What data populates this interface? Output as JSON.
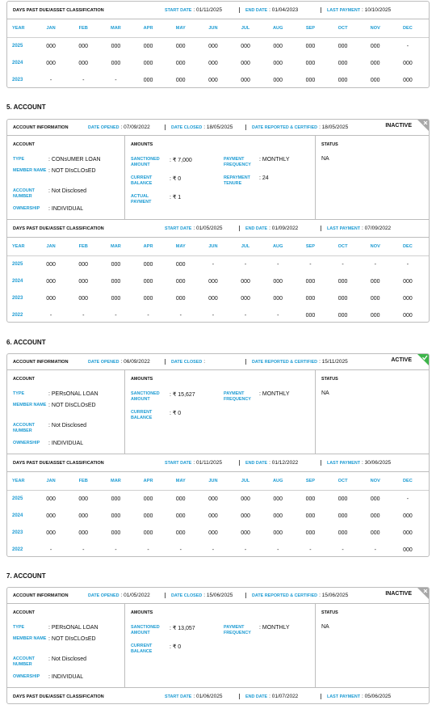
{
  "partial_dpd": {
    "title": "DAYS PAST DUE/ASSET CLASSIFICATION",
    "start_label": "START DATE",
    "start": ": 01/11/2025",
    "end_label": "END DATE",
    "end": ": 01/04/2023",
    "last_label": "LAST PAYMENT",
    "last": ": 10/10/2025",
    "header": [
      "YEAR",
      "JAN",
      "FEB",
      "MAR",
      "APR",
      "MAY",
      "JUN",
      "JUL",
      "AUG",
      "SEP",
      "OCT",
      "NOV",
      "DEC"
    ],
    "rows": [
      [
        "2025",
        "000",
        "000",
        "000",
        "000",
        "000",
        "000",
        "000",
        "000",
        "000",
        "000",
        "000",
        "-"
      ],
      [
        "2024",
        "000",
        "000",
        "000",
        "000",
        "000",
        "000",
        "000",
        "000",
        "000",
        "000",
        "000",
        "000"
      ],
      [
        "2023",
        "-",
        "-",
        "-",
        "000",
        "000",
        "000",
        "000",
        "000",
        "000",
        "000",
        "000",
        "000"
      ]
    ]
  },
  "accounts": [
    {
      "heading": "5. ACCOUNT",
      "info": {
        "title": "ACCOUNT INFORMATION",
        "opened_label": "DATE OPENED",
        "opened": ": 07/09/2022",
        "closed_label": "DATE CLOSED",
        "closed": ": 18/05/2025",
        "reported_label": "DATE REPORTED & CERTIFIED",
        "reported": ": 18/05/2025",
        "status": "INACTIVE",
        "status_color": "#a8a8a8",
        "status_icon": "cross"
      },
      "account": {
        "title": "ACCOUNT",
        "fields": [
          {
            "label": "TYPE",
            "value": ": CONsUMER LOAN"
          },
          {
            "label": "MEMBER NAME",
            "value": ": NOT DIsCLOsED"
          },
          {
            "label": "ACCOUNT NUMBER",
            "value": ": Not Disclosed"
          },
          {
            "label": "OWNERSHIP",
            "value": ": INDIVIDUAL"
          }
        ]
      },
      "amounts": {
        "title": "AMOUNTS",
        "left": [
          {
            "label": "SANCTIONED AMOUNT",
            "value": ": ₹ 7,000"
          },
          {
            "label": "CURRENT BALANCE",
            "value": ": ₹ 0"
          },
          {
            "label": "ACTUAL PAYMENT",
            "value": ": ₹ 1"
          }
        ],
        "right": [
          {
            "label": "PAYMENT FREQUENCY",
            "value": ": MONTHLY"
          },
          {
            "label": "REPAYMENT TENURE",
            "value": ": 24"
          }
        ]
      },
      "status": {
        "title": "STATUS",
        "value": "NA"
      },
      "dpd": {
        "title": "DAYS PAST DUE/ASSET CLASSIFICATION",
        "start_label": "START DATE",
        "start": ": 01/05/2025",
        "end_label": "END DATE",
        "end": ": 01/09/2022",
        "last_label": "LAST PAYMENT",
        "last": ": 07/09/2022",
        "header": [
          "YEAR",
          "JAN",
          "FEB",
          "MAR",
          "APR",
          "MAY",
          "JUN",
          "JUL",
          "AUG",
          "SEP",
          "OCT",
          "NOV",
          "DEC"
        ],
        "rows": [
          [
            "2025",
            "000",
            "000",
            "000",
            "000",
            "000",
            "-",
            "-",
            "-",
            "-",
            "-",
            "-",
            "-"
          ],
          [
            "2024",
            "000",
            "000",
            "000",
            "000",
            "000",
            "000",
            "000",
            "000",
            "000",
            "000",
            "000",
            "000"
          ],
          [
            "2023",
            "000",
            "000",
            "000",
            "000",
            "000",
            "000",
            "000",
            "000",
            "000",
            "000",
            "000",
            "000"
          ],
          [
            "2022",
            "-",
            "-",
            "-",
            "-",
            "-",
            "-",
            "-",
            "-",
            "000",
            "000",
            "000",
            "000"
          ]
        ]
      }
    },
    {
      "heading": "6. ACCOUNT",
      "info": {
        "title": "ACCOUNT INFORMATION",
        "opened_label": "DATE OPENED",
        "opened": ": 06/09/2022",
        "closed_label": "DATE CLOSED",
        "closed": ":",
        "reported_label": "DATE REPORTED & CERTIFIED",
        "reported": ": 15/11/2025",
        "status": "ACTIVE",
        "status_color": "#3db54a",
        "status_icon": "check"
      },
      "account": {
        "title": "ACCOUNT",
        "fields": [
          {
            "label": "TYPE",
            "value": ": PERsONAL LOAN"
          },
          {
            "label": "MEMBER NAME",
            "value": ": NOT DIsCLOsED"
          },
          {
            "label": "ACCOUNT NUMBER",
            "value": ": Not Disclosed"
          },
          {
            "label": "OWNERSHIP",
            "value": ": INDIVIDUAL"
          }
        ]
      },
      "amounts": {
        "title": "AMOUNTS",
        "left": [
          {
            "label": "SANCTIONED AMOUNT",
            "value": ": ₹ 15,627"
          },
          {
            "label": "CURRENT BALANCE",
            "value": ": ₹ 0"
          }
        ],
        "right": [
          {
            "label": "PAYMENT FREQUENCY",
            "value": ": MONTHLY"
          }
        ]
      },
      "status": {
        "title": "STATUS",
        "value": "NA"
      },
      "dpd": {
        "title": "DAYS PAST DUE/ASSET CLASSIFICATION",
        "start_label": "START DATE",
        "start": ": 01/11/2025",
        "end_label": "END DATE",
        "end": ": 01/12/2022",
        "last_label": "LAST PAYMENT",
        "last": ": 30/06/2025",
        "header": [
          "YEAR",
          "JAN",
          "FEB",
          "MAR",
          "APR",
          "MAY",
          "JUN",
          "JUL",
          "AUG",
          "SEP",
          "OCT",
          "NOV",
          "DEC"
        ],
        "rows": [
          [
            "2025",
            "000",
            "000",
            "000",
            "000",
            "000",
            "000",
            "000",
            "000",
            "000",
            "000",
            "000",
            "-"
          ],
          [
            "2024",
            "000",
            "000",
            "000",
            "000",
            "000",
            "000",
            "000",
            "000",
            "000",
            "000",
            "000",
            "000"
          ],
          [
            "2023",
            "000",
            "000",
            "000",
            "000",
            "000",
            "000",
            "000",
            "000",
            "000",
            "000",
            "000",
            "000"
          ],
          [
            "2022",
            "-",
            "-",
            "-",
            "-",
            "-",
            "-",
            "-",
            "-",
            "-",
            "-",
            "-",
            "000"
          ]
        ]
      }
    },
    {
      "heading": "7. ACCOUNT",
      "info": {
        "title": "ACCOUNT INFORMATION",
        "opened_label": "DATE OPENED",
        "opened": ": 01/05/2022",
        "closed_label": "DATE CLOSED",
        "closed": ": 15/06/2025",
        "reported_label": "DATE REPORTED & CERTIFIED",
        "reported": ": 15/06/2025",
        "status": "INACTIVE",
        "status_color": "#a8a8a8",
        "status_icon": "cross"
      },
      "account": {
        "title": "ACCOUNT",
        "fields": [
          {
            "label": "TYPE",
            "value": ": PERsONAL LOAN"
          },
          {
            "label": "MEMBER NAME",
            "value": ": NOT DIsCLOsED"
          },
          {
            "label": "ACCOUNT NUMBER",
            "value": ": Not Disclosed"
          },
          {
            "label": "OWNERSHIP",
            "value": ": INDIVIDUAL"
          }
        ]
      },
      "amounts": {
        "title": "AMOUNTS",
        "left": [
          {
            "label": "SANCTIONED AMOUNT",
            "value": ": ₹ 13,057"
          },
          {
            "label": "CURRENT BALANCE",
            "value": ": ₹ 0"
          }
        ],
        "right": [
          {
            "label": "PAYMENT FREQUENCY",
            "value": ": MONTHLY"
          }
        ]
      },
      "status": {
        "title": "STATUS",
        "value": "NA"
      },
      "dpd": {
        "title": "DAYS PAST DUE/ASSET CLASSIFICATION",
        "start_label": "START DATE",
        "start": ": 01/06/2025",
        "end_label": "END DATE",
        "end": ": 01/07/2022",
        "last_label": "LAST PAYMENT",
        "last": ": 05/06/2025"
      }
    }
  ]
}
